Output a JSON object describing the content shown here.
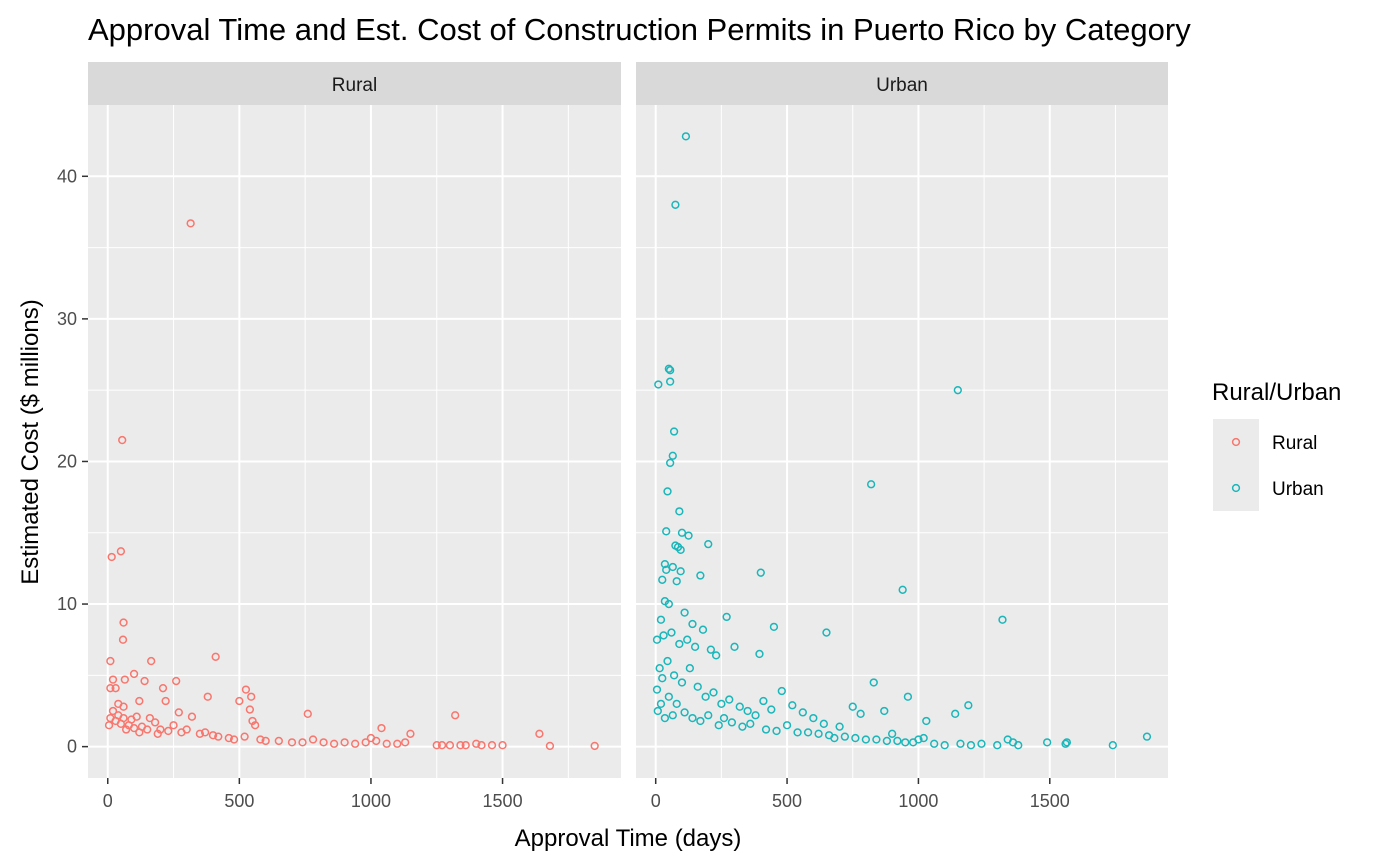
{
  "chart_data": {
    "type": "scatter",
    "title": "Approval Time and Est. Cost of Construction Permits in Puerto Rico by Category",
    "xlabel": "Approval Time (days)",
    "ylabel": "Estimated Cost ($ millions)",
    "xlim": [
      -75,
      1950
    ],
    "ylim": [
      -2.2,
      45
    ],
    "x_ticks": [
      0,
      500,
      1000,
      1500
    ],
    "x_tick_labels": [
      "0",
      "500",
      "1000",
      "1500"
    ],
    "y_ticks": [
      0,
      10,
      20,
      30,
      40
    ],
    "y_tick_labels": [
      "0",
      "10",
      "20",
      "30",
      "40"
    ],
    "grid": true,
    "facets": [
      "Rural",
      "Urban"
    ],
    "legend": {
      "title": "Rural/Urban",
      "position": "right",
      "entries": [
        {
          "label": "Rural",
          "color": "#F8766D"
        },
        {
          "label": "Urban",
          "color": "#1AB6BA"
        }
      ]
    },
    "series": [
      {
        "name": "Rural",
        "color": "#F8766D",
        "points": [
          [
            315,
            36.7
          ],
          [
            55,
            21.5
          ],
          [
            15,
            13.3
          ],
          [
            50,
            13.7
          ],
          [
            60,
            8.7
          ],
          [
            58,
            7.5
          ],
          [
            10,
            6.0
          ],
          [
            165,
            6.0
          ],
          [
            410,
            6.3
          ],
          [
            20,
            4.7
          ],
          [
            65,
            4.7
          ],
          [
            260,
            4.6
          ],
          [
            140,
            4.6
          ],
          [
            10,
            4.1
          ],
          [
            30,
            4.1
          ],
          [
            100,
            5.1
          ],
          [
            210,
            4.1
          ],
          [
            525,
            4.0
          ],
          [
            380,
            3.5
          ],
          [
            545,
            3.5
          ],
          [
            500,
            3.2
          ],
          [
            120,
            3.2
          ],
          [
            220,
            3.2
          ],
          [
            40,
            3.0
          ],
          [
            60,
            2.8
          ],
          [
            320,
            2.1
          ],
          [
            270,
            2.4
          ],
          [
            540,
            2.6
          ],
          [
            550,
            1.8
          ],
          [
            560,
            1.5
          ],
          [
            760,
            2.3
          ],
          [
            1320,
            2.2
          ],
          [
            1640,
            0.9
          ],
          [
            1040,
            1.3
          ],
          [
            1150,
            0.9
          ],
          [
            5,
            1.5
          ],
          [
            10,
            2.0
          ],
          [
            20,
            2.5
          ],
          [
            30,
            1.8
          ],
          [
            40,
            2.2
          ],
          [
            50,
            1.6
          ],
          [
            60,
            2.0
          ],
          [
            70,
            1.2
          ],
          [
            80,
            1.5
          ],
          [
            90,
            1.9
          ],
          [
            100,
            1.3
          ],
          [
            110,
            2.1
          ],
          [
            120,
            1.0
          ],
          [
            130,
            1.4
          ],
          [
            150,
            1.2
          ],
          [
            160,
            2.0
          ],
          [
            180,
            1.7
          ],
          [
            190,
            0.9
          ],
          [
            200,
            1.2
          ],
          [
            230,
            1.1
          ],
          [
            250,
            1.5
          ],
          [
            280,
            1.0
          ],
          [
            300,
            1.2
          ],
          [
            350,
            0.9
          ],
          [
            370,
            1.0
          ],
          [
            400,
            0.8
          ],
          [
            420,
            0.7
          ],
          [
            460,
            0.6
          ],
          [
            480,
            0.5
          ],
          [
            520,
            0.7
          ],
          [
            580,
            0.5
          ],
          [
            600,
            0.4
          ],
          [
            650,
            0.4
          ],
          [
            700,
            0.3
          ],
          [
            740,
            0.3
          ],
          [
            780,
            0.5
          ],
          [
            820,
            0.3
          ],
          [
            860,
            0.2
          ],
          [
            900,
            0.3
          ],
          [
            940,
            0.2
          ],
          [
            980,
            0.3
          ],
          [
            1000,
            0.6
          ],
          [
            1020,
            0.4
          ],
          [
            1060,
            0.2
          ],
          [
            1100,
            0.2
          ],
          [
            1130,
            0.3
          ],
          [
            1250,
            0.1
          ],
          [
            1270,
            0.1
          ],
          [
            1300,
            0.1
          ],
          [
            1340,
            0.1
          ],
          [
            1360,
            0.1
          ],
          [
            1400,
            0.2
          ],
          [
            1420,
            0.1
          ],
          [
            1460,
            0.1
          ],
          [
            1500,
            0.1
          ],
          [
            1680,
            0.05
          ],
          [
            1850,
            0.05
          ]
        ]
      },
      {
        "name": "Urban",
        "color": "#1AB6BA",
        "points": [
          [
            115,
            42.8
          ],
          [
            75,
            38.0
          ],
          [
            50,
            26.5
          ],
          [
            55,
            26.4
          ],
          [
            55,
            25.6
          ],
          [
            10,
            25.4
          ],
          [
            1150,
            25.0
          ],
          [
            70,
            22.1
          ],
          [
            65,
            20.4
          ],
          [
            55,
            19.9
          ],
          [
            820,
            18.4
          ],
          [
            45,
            17.9
          ],
          [
            90,
            16.5
          ],
          [
            40,
            15.1
          ],
          [
            100,
            15.0
          ],
          [
            125,
            14.8
          ],
          [
            75,
            14.1
          ],
          [
            85,
            14.0
          ],
          [
            200,
            14.2
          ],
          [
            95,
            13.8
          ],
          [
            35,
            12.8
          ],
          [
            65,
            12.6
          ],
          [
            40,
            12.4
          ],
          [
            95,
            12.3
          ],
          [
            400,
            12.2
          ],
          [
            25,
            11.7
          ],
          [
            80,
            11.6
          ],
          [
            170,
            12.0
          ],
          [
            940,
            11.0
          ],
          [
            35,
            10.2
          ],
          [
            50,
            10.0
          ],
          [
            1320,
            8.9
          ],
          [
            270,
            9.1
          ],
          [
            450,
            8.4
          ],
          [
            650,
            8.0
          ],
          [
            110,
            9.4
          ],
          [
            20,
            8.9
          ],
          [
            140,
            8.6
          ],
          [
            180,
            8.2
          ],
          [
            300,
            7.0
          ],
          [
            395,
            6.5
          ],
          [
            5,
            7.5
          ],
          [
            30,
            7.8
          ],
          [
            60,
            8.0
          ],
          [
            90,
            7.2
          ],
          [
            120,
            7.5
          ],
          [
            150,
            7.0
          ],
          [
            210,
            6.8
          ],
          [
            230,
            6.4
          ],
          [
            830,
            4.5
          ],
          [
            960,
            3.5
          ],
          [
            1190,
            2.9
          ],
          [
            1030,
            1.8
          ],
          [
            1140,
            2.3
          ],
          [
            870,
            2.5
          ],
          [
            750,
            2.8
          ],
          [
            780,
            2.3
          ],
          [
            480,
            3.9
          ],
          [
            410,
            3.2
          ],
          [
            440,
            2.6
          ],
          [
            520,
            2.9
          ],
          [
            560,
            2.4
          ],
          [
            600,
            2.0
          ],
          [
            640,
            1.6
          ],
          [
            700,
            1.4
          ],
          [
            500,
            1.5
          ],
          [
            5,
            4.0
          ],
          [
            15,
            5.5
          ],
          [
            25,
            4.8
          ],
          [
            45,
            6.0
          ],
          [
            70,
            5.0
          ],
          [
            100,
            4.5
          ],
          [
            130,
            5.5
          ],
          [
            160,
            4.2
          ],
          [
            190,
            3.5
          ],
          [
            220,
            3.8
          ],
          [
            250,
            3.0
          ],
          [
            280,
            3.3
          ],
          [
            320,
            2.8
          ],
          [
            350,
            2.5
          ],
          [
            380,
            2.2
          ],
          [
            8,
            2.5
          ],
          [
            20,
            3.0
          ],
          [
            35,
            2.0
          ],
          [
            50,
            3.5
          ],
          [
            65,
            2.2
          ],
          [
            80,
            3.0
          ],
          [
            110,
            2.4
          ],
          [
            140,
            2.0
          ],
          [
            170,
            1.8
          ],
          [
            200,
            2.2
          ],
          [
            240,
            1.5
          ],
          [
            260,
            2.0
          ],
          [
            290,
            1.7
          ],
          [
            330,
            1.4
          ],
          [
            360,
            1.6
          ],
          [
            420,
            1.2
          ],
          [
            460,
            1.1
          ],
          [
            540,
            1.0
          ],
          [
            580,
            1.0
          ],
          [
            620,
            0.9
          ],
          [
            660,
            0.8
          ],
          [
            680,
            0.6
          ],
          [
            720,
            0.7
          ],
          [
            760,
            0.6
          ],
          [
            800,
            0.5
          ],
          [
            840,
            0.5
          ],
          [
            880,
            0.4
          ],
          [
            900,
            0.9
          ],
          [
            920,
            0.4
          ],
          [
            950,
            0.3
          ],
          [
            980,
            0.3
          ],
          [
            1000,
            0.5
          ],
          [
            1020,
            0.6
          ],
          [
            1060,
            0.2
          ],
          [
            1100,
            0.1
          ],
          [
            1160,
            0.2
          ],
          [
            1200,
            0.1
          ],
          [
            1240,
            0.2
          ],
          [
            1300,
            0.1
          ],
          [
            1340,
            0.5
          ],
          [
            1360,
            0.3
          ],
          [
            1380,
            0.1
          ],
          [
            1490,
            0.3
          ],
          [
            1560,
            0.2
          ],
          [
            1565,
            0.3
          ],
          [
            1740,
            0.1
          ],
          [
            1870,
            0.7
          ]
        ]
      }
    ]
  }
}
